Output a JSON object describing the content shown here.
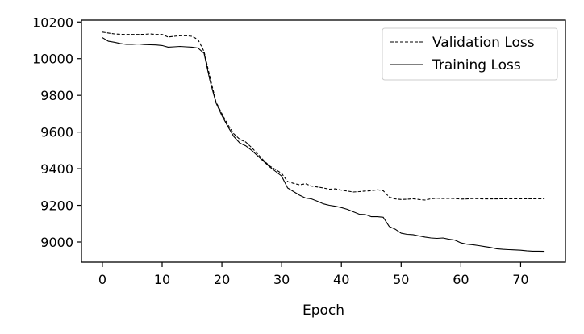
{
  "chart_data": {
    "type": "line",
    "title": "",
    "xlabel": "Epoch",
    "ylabel": "",
    "xlim": [
      -3.5,
      77.5
    ],
    "ylim": [
      8890,
      10210
    ],
    "xticks": [
      0,
      10,
      20,
      30,
      40,
      50,
      60,
      70
    ],
    "yticks": [
      9000,
      9200,
      9400,
      9600,
      9800,
      10000,
      10200
    ],
    "grid": false,
    "legend_position": "top-right",
    "series": [
      {
        "name": "Validation Loss",
        "style": "dashed",
        "color": "#000000",
        "x": [
          0,
          1,
          2,
          3,
          4,
          5,
          6,
          7,
          8,
          9,
          10,
          11,
          12,
          13,
          14,
          15,
          16,
          17,
          18,
          19,
          20,
          21,
          22,
          23,
          24,
          25,
          26,
          27,
          28,
          29,
          30,
          31,
          32,
          33,
          34,
          35,
          36,
          37,
          38,
          39,
          40,
          41,
          42,
          43,
          44,
          45,
          46,
          47,
          48,
          49,
          50,
          51,
          52,
          53,
          54,
          55,
          56,
          57,
          58,
          59,
          60,
          61,
          62,
          63,
          64,
          65,
          66,
          67,
          68,
          69,
          70,
          71,
          72,
          73,
          74
        ],
        "values": [
          10145,
          10140,
          10135,
          10133,
          10132,
          10132,
          10132,
          10133,
          10135,
          10132,
          10132,
          10118,
          10122,
          10125,
          10125,
          10122,
          10105,
          10040,
          9900,
          9765,
          9700,
          9640,
          9590,
          9560,
          9545,
          9515,
          9480,
          9445,
          9415,
          9395,
          9375,
          9330,
          9320,
          9312,
          9318,
          9305,
          9300,
          9295,
          9288,
          9290,
          9283,
          9278,
          9273,
          9275,
          9278,
          9280,
          9285,
          9280,
          9245,
          9235,
          9232,
          9233,
          9236,
          9232,
          9229,
          9236,
          9239,
          9237,
          9238,
          9237,
          9234,
          9235,
          9237,
          9236,
          9235,
          9235,
          9235,
          9236,
          9236,
          9236,
          9236,
          9236,
          9236,
          9236,
          9236
        ]
      },
      {
        "name": "Training Loss",
        "style": "solid",
        "color": "#000000",
        "x": [
          0,
          1,
          2,
          3,
          4,
          5,
          6,
          7,
          8,
          9,
          10,
          11,
          12,
          13,
          14,
          15,
          16,
          17,
          18,
          19,
          20,
          21,
          22,
          23,
          24,
          25,
          26,
          27,
          28,
          29,
          30,
          31,
          32,
          33,
          34,
          35,
          36,
          37,
          38,
          39,
          40,
          41,
          42,
          43,
          44,
          45,
          46,
          47,
          48,
          49,
          50,
          51,
          52,
          53,
          54,
          55,
          56,
          57,
          58,
          59,
          60,
          61,
          62,
          63,
          64,
          65,
          66,
          67,
          68,
          69,
          70,
          71,
          72,
          73,
          74
        ],
        "values": [
          10115,
          10095,
          10090,
          10083,
          10078,
          10078,
          10080,
          10077,
          10076,
          10075,
          10072,
          10063,
          10065,
          10067,
          10065,
          10063,
          10058,
          10030,
          9880,
          9760,
          9690,
          9630,
          9575,
          9540,
          9525,
          9500,
          9470,
          9440,
          9410,
          9385,
          9360,
          9295,
          9275,
          9255,
          9240,
          9235,
          9222,
          9208,
          9200,
          9195,
          9188,
          9178,
          9165,
          9152,
          9150,
          9138,
          9138,
          9135,
          9085,
          9070,
          9048,
          9042,
          9040,
          9033,
          9027,
          9022,
          9020,
          9022,
          9015,
          9010,
          8995,
          8988,
          8985,
          8980,
          8975,
          8970,
          8963,
          8960,
          8958,
          8957,
          8955,
          8952,
          8950,
          8950,
          8949
        ]
      }
    ]
  }
}
